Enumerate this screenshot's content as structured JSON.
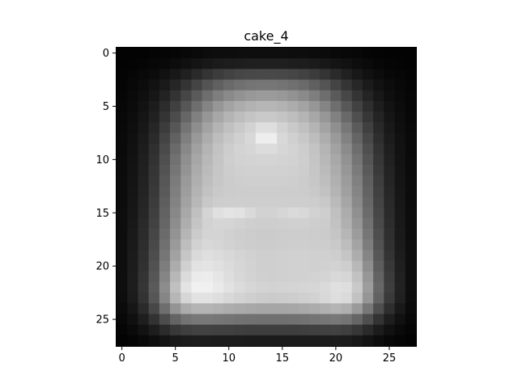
{
  "chart_data": {
    "type": "heatmap",
    "title": "cake_4",
    "xlabel": "",
    "ylabel": "",
    "colormap": "gray",
    "rows": 28,
    "cols": 28,
    "xlim": [
      -0.5,
      27.5
    ],
    "ylim": [
      27.5,
      -0.5
    ],
    "x_ticks": [
      0,
      5,
      10,
      15,
      20,
      25
    ],
    "y_ticks": [
      0,
      5,
      10,
      15,
      20,
      25
    ],
    "x_tick_labels": [
      "0",
      "5",
      "10",
      "15",
      "20",
      "25"
    ],
    "y_tick_labels": [
      "0",
      "5",
      "10",
      "15",
      "20",
      "25"
    ],
    "grid": false,
    "legend": "none",
    "value_range": [
      0,
      255
    ],
    "values": [
      [
        3,
        3,
        3,
        4,
        5,
        6,
        8,
        10,
        12,
        13,
        13,
        14,
        14,
        14,
        14,
        14,
        13,
        13,
        12,
        11,
        9,
        8,
        7,
        5,
        4,
        3,
        3,
        3
      ],
      [
        3,
        4,
        5,
        7,
        9,
        12,
        16,
        20,
        24,
        27,
        29,
        30,
        31,
        31,
        31,
        31,
        30,
        29,
        27,
        24,
        20,
        17,
        13,
        10,
        7,
        5,
        4,
        3
      ],
      [
        4,
        6,
        9,
        12,
        17,
        24,
        32,
        42,
        52,
        60,
        66,
        70,
        72,
        73,
        73,
        72,
        70,
        66,
        60,
        52,
        42,
        33,
        24,
        17,
        12,
        8,
        6,
        4
      ],
      [
        5,
        8,
        12,
        18,
        26,
        38,
        52,
        68,
        84,
        96,
        106,
        112,
        116,
        118,
        118,
        116,
        112,
        106,
        96,
        84,
        68,
        53,
        39,
        27,
        18,
        12,
        8,
        5
      ],
      [
        6,
        10,
        15,
        23,
        35,
        51,
        70,
        90,
        110,
        126,
        138,
        146,
        152,
        155,
        155,
        152,
        146,
        138,
        126,
        110,
        90,
        71,
        52,
        36,
        24,
        15,
        10,
        6
      ],
      [
        7,
        11,
        18,
        28,
        44,
        64,
        86,
        110,
        132,
        150,
        163,
        172,
        178,
        182,
        182,
        178,
        172,
        163,
        150,
        132,
        110,
        88,
        66,
        46,
        30,
        19,
        12,
        7
      ],
      [
        8,
        13,
        21,
        33,
        52,
        76,
        102,
        128,
        150,
        167,
        180,
        189,
        196,
        201,
        201,
        196,
        189,
        180,
        167,
        150,
        129,
        105,
        79,
        55,
        36,
        22,
        14,
        8
      ],
      [
        9,
        14,
        24,
        38,
        60,
        87,
        116,
        142,
        163,
        180,
        192,
        201,
        210,
        222,
        222,
        210,
        201,
        192,
        180,
        163,
        143,
        119,
        91,
        64,
        41,
        25,
        15,
        9
      ],
      [
        10,
        16,
        27,
        43,
        68,
        97,
        127,
        153,
        173,
        189,
        200,
        208,
        216,
        238,
        238,
        216,
        208,
        200,
        189,
        173,
        154,
        130,
        101,
        72,
        46,
        28,
        17,
        10
      ],
      [
        10,
        17,
        29,
        47,
        74,
        106,
        136,
        161,
        180,
        195,
        205,
        211,
        214,
        220,
        220,
        214,
        211,
        205,
        195,
        180,
        162,
        139,
        110,
        79,
        51,
        31,
        18,
        10
      ],
      [
        11,
        18,
        31,
        50,
        79,
        113,
        143,
        167,
        184,
        197,
        206,
        210,
        211,
        212,
        212,
        211,
        210,
        206,
        197,
        184,
        168,
        146,
        117,
        85,
        55,
        33,
        19,
        11
      ],
      [
        11,
        19,
        32,
        53,
        83,
        118,
        148,
        171,
        187,
        198,
        205,
        208,
        209,
        209,
        209,
        209,
        208,
        205,
        198,
        187,
        172,
        151,
        123,
        90,
        58,
        35,
        20,
        11
      ],
      [
        12,
        20,
        34,
        55,
        87,
        123,
        153,
        175,
        190,
        199,
        204,
        206,
        207,
        207,
        207,
        207,
        206,
        204,
        199,
        190,
        176,
        156,
        128,
        95,
        62,
        37,
        21,
        12
      ],
      [
        12,
        21,
        35,
        57,
        90,
        127,
        157,
        179,
        194,
        201,
        204,
        205,
        205,
        205,
        205,
        205,
        205,
        204,
        201,
        194,
        180,
        160,
        133,
        99,
        65,
        39,
        22,
        12
      ],
      [
        12,
        22,
        37,
        60,
        94,
        131,
        162,
        184,
        200,
        205,
        206,
        206,
        206,
        206,
        206,
        206,
        206,
        206,
        205,
        200,
        186,
        166,
        138,
        103,
        68,
        41,
        23,
        12
      ],
      [
        13,
        23,
        39,
        63,
        98,
        136,
        168,
        192,
        212,
        224,
        228,
        226,
        218,
        210,
        210,
        214,
        218,
        216,
        210,
        206,
        192,
        172,
        144,
        108,
        71,
        43,
        24,
        13
      ],
      [
        13,
        24,
        41,
        66,
        102,
        141,
        174,
        197,
        210,
        214,
        213,
        210,
        207,
        206,
        206,
        207,
        208,
        208,
        206,
        204,
        194,
        176,
        150,
        113,
        74,
        45,
        25,
        13
      ],
      [
        13,
        25,
        43,
        70,
        107,
        147,
        181,
        203,
        212,
        212,
        209,
        206,
        204,
        203,
        203,
        204,
        205,
        205,
        204,
        203,
        197,
        182,
        156,
        118,
        78,
        47,
        26,
        13
      ],
      [
        14,
        26,
        45,
        73,
        112,
        154,
        189,
        210,
        216,
        214,
        210,
        207,
        205,
        204,
        204,
        205,
        206,
        206,
        205,
        205,
        201,
        189,
        164,
        125,
        82,
        49,
        27,
        14
      ],
      [
        14,
        27,
        47,
        77,
        118,
        162,
        198,
        218,
        223,
        220,
        216,
        212,
        209,
        207,
        207,
        208,
        209,
        209,
        208,
        208,
        206,
        197,
        173,
        133,
        87,
        52,
        29,
        14
      ],
      [
        14,
        28,
        49,
        81,
        125,
        172,
        208,
        226,
        228,
        224,
        219,
        214,
        210,
        207,
        207,
        208,
        209,
        209,
        208,
        209,
        210,
        206,
        184,
        142,
        93,
        56,
        31,
        14
      ],
      [
        14,
        29,
        52,
        86,
        133,
        183,
        219,
        235,
        236,
        230,
        222,
        216,
        211,
        208,
        207,
        208,
        209,
        209,
        210,
        212,
        216,
        214,
        194,
        151,
        99,
        60,
        33,
        14
      ],
      [
        14,
        29,
        54,
        90,
        140,
        192,
        227,
        240,
        240,
        234,
        226,
        219,
        214,
        211,
        210,
        211,
        212,
        213,
        214,
        218,
        224,
        222,
        201,
        157,
        103,
        62,
        34,
        14
      ],
      [
        13,
        27,
        51,
        86,
        134,
        182,
        214,
        226,
        226,
        222,
        216,
        211,
        207,
        204,
        203,
        204,
        205,
        207,
        210,
        216,
        222,
        218,
        194,
        150,
        98,
        58,
        32,
        13
      ],
      [
        11,
        22,
        42,
        71,
        110,
        148,
        172,
        180,
        180,
        177,
        173,
        170,
        168,
        166,
        166,
        166,
        167,
        169,
        172,
        176,
        180,
        175,
        154,
        119,
        78,
        46,
        25,
        11
      ],
      [
        8,
        16,
        30,
        50,
        76,
        100,
        115,
        120,
        120,
        118,
        116,
        114,
        113,
        112,
        112,
        112,
        113,
        114,
        116,
        118,
        120,
        116,
        101,
        78,
        51,
        30,
        17,
        8
      ],
      [
        5,
        10,
        18,
        29,
        43,
        56,
        63,
        66,
        66,
        65,
        64,
        63,
        62,
        62,
        62,
        62,
        62,
        63,
        64,
        65,
        66,
        63,
        55,
        42,
        28,
        17,
        10,
        5
      ],
      [
        3,
        5,
        9,
        14,
        20,
        25,
        28,
        29,
        29,
        28,
        28,
        28,
        27,
        27,
        27,
        27,
        27,
        28,
        28,
        28,
        29,
        28,
        24,
        19,
        13,
        8,
        5,
        3
      ]
    ]
  }
}
